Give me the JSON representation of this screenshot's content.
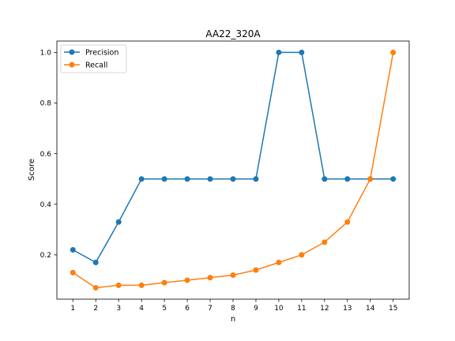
{
  "chart_data": {
    "type": "line",
    "title": "AA22_320A",
    "xlabel": "n",
    "ylabel": "Score",
    "x": [
      1,
      2,
      3,
      4,
      5,
      6,
      7,
      8,
      9,
      10,
      11,
      12,
      13,
      14,
      15
    ],
    "xticks": [
      1,
      2,
      3,
      4,
      5,
      6,
      7,
      8,
      9,
      10,
      11,
      12,
      13,
      14,
      15
    ],
    "yticks": [
      "0.2",
      "0.4",
      "0.6",
      "0.8",
      "1.0"
    ],
    "xlim": [
      0.3,
      15.7
    ],
    "ylim": [
      0.025,
      1.045
    ],
    "grid": false,
    "legend_position": "upper left",
    "series": [
      {
        "name": "Precision",
        "color": "#1f77b4",
        "marker": "circle",
        "values": [
          0.22,
          0.17,
          0.33,
          0.5,
          0.5,
          0.5,
          0.5,
          0.5,
          0.5,
          1.0,
          1.0,
          0.5,
          0.5,
          0.5,
          0.5
        ]
      },
      {
        "name": "Recall",
        "color": "#ff7f0e",
        "marker": "circle",
        "values": [
          0.13,
          0.07,
          0.08,
          0.08,
          0.09,
          0.1,
          0.11,
          0.12,
          0.14,
          0.17,
          0.2,
          0.25,
          0.33,
          0.5,
          1.0
        ]
      }
    ]
  }
}
